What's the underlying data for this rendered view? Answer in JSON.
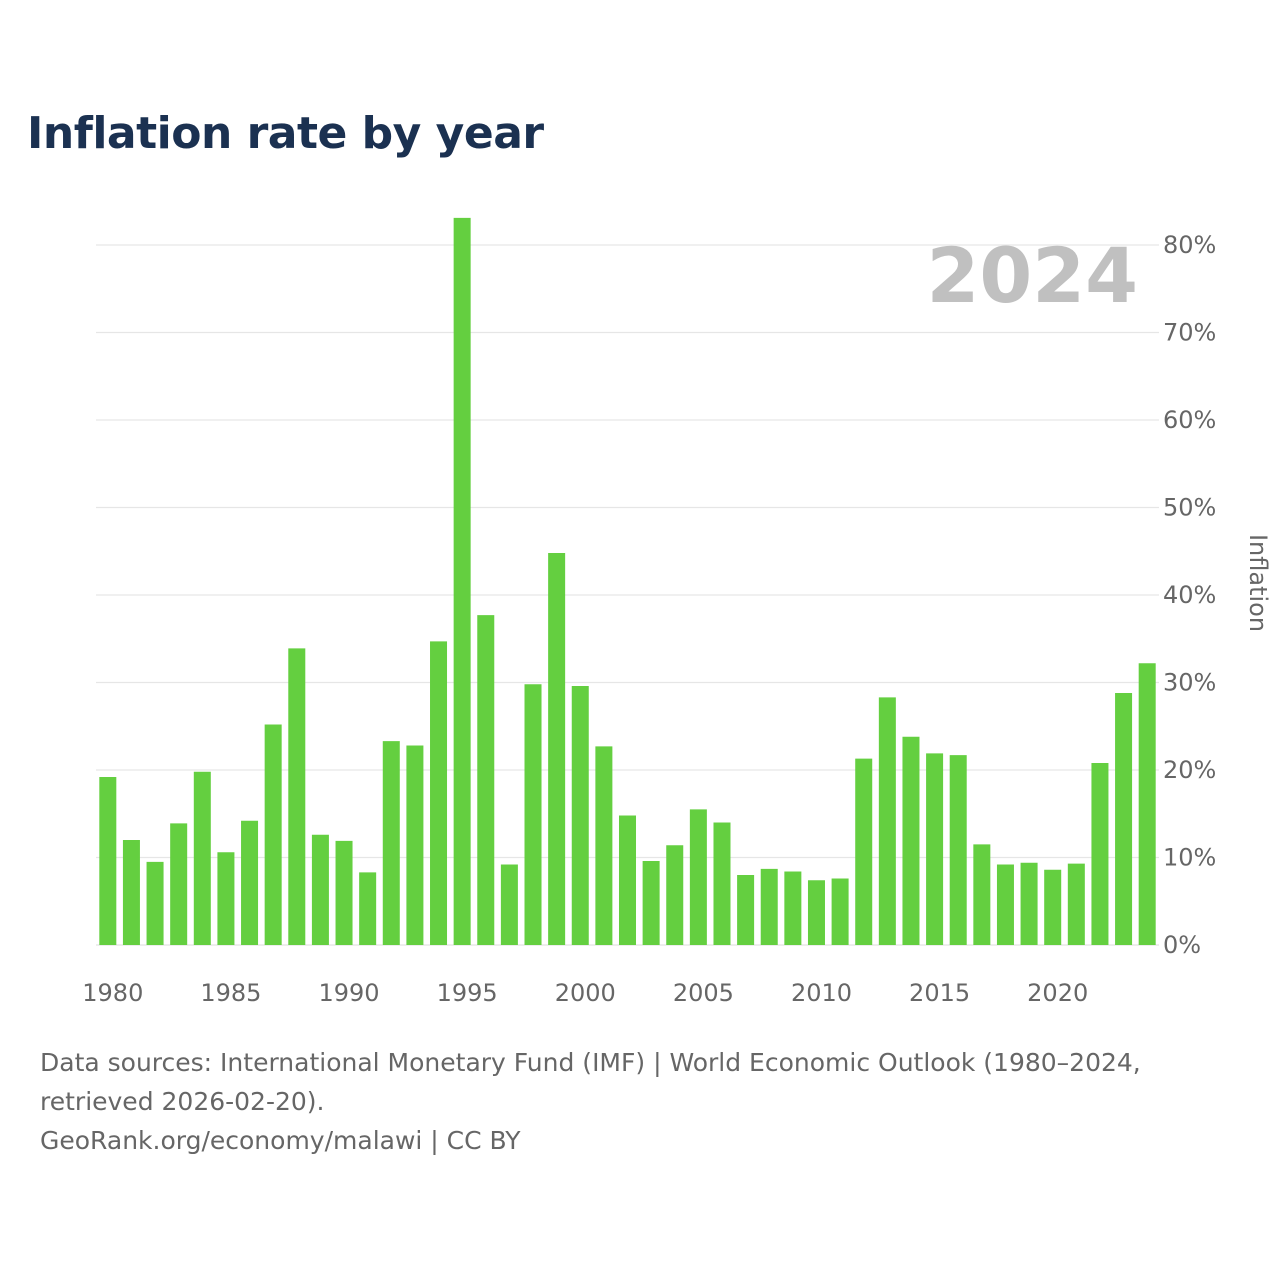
{
  "title": "Inflation rate by year",
  "chart_data": {
    "type": "bar",
    "title": "Inflation rate by year",
    "year_watermark": "2024",
    "xlabel": "",
    "ylabel": "Inflation",
    "ylim": [
      0,
      83
    ],
    "y_ticks": [
      0,
      10,
      20,
      30,
      40,
      50,
      60,
      70,
      80
    ],
    "y_tick_labels": [
      "0%",
      "10%",
      "20%",
      "30%",
      "40%",
      "50%",
      "60%",
      "70%",
      "80%"
    ],
    "x_ticks": [
      1980,
      1985,
      1990,
      1995,
      2000,
      2005,
      2010,
      2015,
      2020
    ],
    "x_tick_labels": [
      "1980",
      "1985",
      "1990",
      "1995",
      "2000",
      "2005",
      "2010",
      "2015",
      "2020"
    ],
    "categories": [
      1980,
      1981,
      1982,
      1983,
      1984,
      1985,
      1986,
      1987,
      1988,
      1989,
      1990,
      1991,
      1992,
      1993,
      1994,
      1995,
      1996,
      1997,
      1998,
      1999,
      2000,
      2001,
      2002,
      2003,
      2004,
      2005,
      2006,
      2007,
      2008,
      2009,
      2010,
      2011,
      2012,
      2013,
      2014,
      2015,
      2016,
      2017,
      2018,
      2019,
      2020,
      2021,
      2022,
      2023,
      2024
    ],
    "values": [
      19.2,
      12.0,
      9.5,
      13.9,
      19.8,
      10.6,
      14.2,
      25.2,
      33.9,
      12.6,
      11.9,
      8.3,
      23.3,
      22.8,
      34.7,
      83.1,
      37.7,
      9.2,
      29.8,
      44.8,
      29.6,
      22.7,
      14.8,
      9.6,
      11.4,
      15.5,
      14.0,
      8.0,
      8.7,
      8.4,
      7.4,
      7.6,
      21.3,
      28.3,
      23.8,
      21.9,
      21.7,
      11.5,
      9.2,
      9.4,
      8.6,
      9.3,
      20.8,
      28.8,
      32.2
    ],
    "colors": {
      "bar": "#64cf40",
      "grid": "#e6e6e6",
      "tick_text": "#666666",
      "watermark": "#c0c0c0",
      "title": "#1b3151"
    }
  },
  "footer": {
    "sources": "Data sources: International Monetary Fund (IMF) | World Economic Outlook (1980–2024, retrieved 2026-02-20).",
    "credit": "GeoRank.org/economy/malawi | CC BY"
  }
}
